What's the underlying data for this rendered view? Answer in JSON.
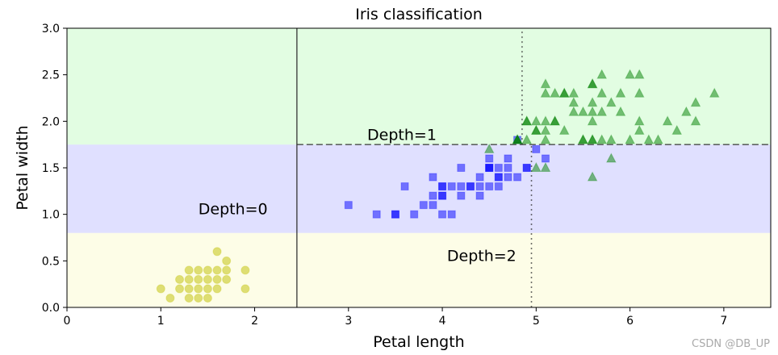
{
  "chart_data": {
    "type": "scatter",
    "title": "Iris classification",
    "xlabel": "Petal length",
    "ylabel": "Petal width",
    "xlim": [
      0,
      7.5
    ],
    "ylim": [
      0,
      3.0
    ],
    "xticks": [
      "0",
      "1",
      "2",
      "3",
      "4",
      "5",
      "6",
      "7"
    ],
    "yticks": [
      "0.0",
      "0.5",
      "1.0",
      "1.5",
      "2.0",
      "2.5",
      "3.0"
    ],
    "grid": false,
    "regions": [
      {
        "name": "setosa-region",
        "x": [
          0,
          7.5
        ],
        "y": [
          0,
          0.8
        ],
        "color": "#fafab0"
      },
      {
        "name": "versicolor-region",
        "x": [
          2.45,
          7.5
        ],
        "y": [
          0.8,
          1.75
        ],
        "color": "#9898ff"
      },
      {
        "name": "virginica-region",
        "x": [
          2.45,
          7.5
        ],
        "y": [
          1.75,
          3.0
        ],
        "color": "#a0faa0"
      },
      {
        "name": "versicolor-left-region",
        "x": [
          0,
          2.45
        ],
        "y": [
          0.8,
          1.75
        ],
        "color": "#9898ff"
      },
      {
        "name": "virginica-left-region",
        "x": [
          0,
          2.45
        ],
        "y": [
          1.75,
          3.0
        ],
        "color": "#a0faa0"
      }
    ],
    "boundaries": [
      {
        "name": "depth-0-boundary",
        "style": "solid",
        "x": [
          2.45,
          2.45
        ],
        "y": [
          0,
          3.0
        ]
      },
      {
        "name": "depth-1-boundary",
        "style": "dashed",
        "x": [
          2.45,
          7.5
        ],
        "y": [
          1.75,
          1.75
        ]
      },
      {
        "name": "depth-2-lower-boundary",
        "style": "dotted",
        "x": [
          4.95,
          4.95
        ],
        "y": [
          0,
          1.75
        ]
      },
      {
        "name": "depth-2-upper-boundary",
        "style": "dotted",
        "x": [
          4.85,
          4.85
        ],
        "y": [
          1.75,
          3.0
        ]
      }
    ],
    "annotations": [
      {
        "text": "Depth=0",
        "x": 1.4,
        "y": 1.0
      },
      {
        "text": "Depth=1",
        "x": 3.2,
        "y": 1.8
      },
      {
        "text": "Depth=2",
        "x": 4.05,
        "y": 0.5
      }
    ],
    "series": [
      {
        "marker": "circle",
        "color": "#bfbf00",
        "points": [
          [
            1.4,
            0.2
          ],
          [
            1.3,
            0.2
          ],
          [
            1.5,
            0.2
          ],
          [
            1.7,
            0.4
          ],
          [
            1.4,
            0.3
          ],
          [
            1.5,
            0.1
          ],
          [
            1.6,
            0.2
          ],
          [
            1.1,
            0.1
          ],
          [
            1.2,
            0.2
          ],
          [
            1.0,
            0.2
          ],
          [
            1.9,
            0.2
          ],
          [
            1.6,
            0.4
          ],
          [
            1.7,
            0.3
          ],
          [
            1.5,
            0.4
          ],
          [
            1.6,
            0.6
          ],
          [
            1.3,
            0.3
          ],
          [
            1.9,
            0.4
          ],
          [
            1.7,
            0.5
          ],
          [
            1.4,
            0.1
          ],
          [
            1.3,
            0.4
          ],
          [
            1.5,
            0.3
          ],
          [
            1.2,
            0.3
          ],
          [
            1.3,
            0.1
          ],
          [
            1.6,
            0.3
          ],
          [
            1.4,
            0.4
          ]
        ]
      },
      {
        "marker": "square",
        "color": "#0000ff",
        "points": [
          [
            4.7,
            1.4
          ],
          [
            4.5,
            1.5
          ],
          [
            4.9,
            1.5
          ],
          [
            4.0,
            1.3
          ],
          [
            4.6,
            1.5
          ],
          [
            4.5,
            1.3
          ],
          [
            4.7,
            1.6
          ],
          [
            3.3,
            1.0
          ],
          [
            4.6,
            1.3
          ],
          [
            3.9,
            1.4
          ],
          [
            3.5,
            1.0
          ],
          [
            4.2,
            1.5
          ],
          [
            4.0,
            1.0
          ],
          [
            3.6,
            1.3
          ],
          [
            4.4,
            1.4
          ],
          [
            4.1,
            1.0
          ],
          [
            4.5,
            1.5
          ],
          [
            3.9,
            1.1
          ],
          [
            4.8,
            1.8
          ],
          [
            4.3,
            1.3
          ],
          [
            4.8,
            1.4
          ],
          [
            5.0,
            1.7
          ],
          [
            3.8,
            1.1
          ],
          [
            3.7,
            1.0
          ],
          [
            3.9,
            1.2
          ],
          [
            5.1,
            1.6
          ],
          [
            4.5,
            1.6
          ],
          [
            4.7,
            1.5
          ],
          [
            4.4,
            1.3
          ],
          [
            4.1,
            1.3
          ],
          [
            4.0,
            1.3
          ],
          [
            4.4,
            1.2
          ],
          [
            4.6,
            1.4
          ],
          [
            4.0,
            1.2
          ],
          [
            3.0,
            1.1
          ],
          [
            4.2,
            1.3
          ],
          [
            4.2,
            1.2
          ],
          [
            4.3,
            1.3
          ],
          [
            3.5,
            1.0
          ],
          [
            4.9,
            1.5
          ],
          [
            4.6,
            1.4
          ],
          [
            4.5,
            1.5
          ],
          [
            4.0,
            1.2
          ]
        ]
      },
      {
        "marker": "triangle",
        "color": "#008000",
        "points": [
          [
            6.0,
            2.5
          ],
          [
            5.1,
            1.9
          ],
          [
            5.9,
            2.1
          ],
          [
            5.6,
            1.8
          ],
          [
            5.8,
            2.2
          ],
          [
            6.6,
            2.1
          ],
          [
            4.5,
            1.7
          ],
          [
            6.3,
            1.8
          ],
          [
            5.8,
            1.8
          ],
          [
            6.1,
            2.5
          ],
          [
            5.1,
            2.0
          ],
          [
            5.3,
            1.9
          ],
          [
            5.5,
            2.1
          ],
          [
            5.0,
            2.0
          ],
          [
            5.1,
            2.4
          ],
          [
            5.3,
            2.3
          ],
          [
            5.5,
            1.8
          ],
          [
            6.7,
            2.2
          ],
          [
            6.9,
            2.3
          ],
          [
            5.0,
            1.5
          ],
          [
            5.7,
            2.3
          ],
          [
            4.9,
            2.0
          ],
          [
            6.7,
            2.0
          ],
          [
            4.9,
            1.8
          ],
          [
            5.7,
            2.1
          ],
          [
            6.0,
            1.8
          ],
          [
            4.8,
            1.8
          ],
          [
            5.6,
            2.1
          ],
          [
            5.8,
            1.6
          ],
          [
            6.1,
            1.9
          ],
          [
            6.4,
            2.0
          ],
          [
            5.6,
            2.2
          ],
          [
            5.1,
            1.5
          ],
          [
            5.6,
            1.4
          ],
          [
            6.1,
            2.3
          ],
          [
            5.6,
            2.4
          ],
          [
            5.5,
            1.8
          ],
          [
            4.8,
            1.8
          ],
          [
            5.4,
            2.1
          ],
          [
            5.6,
            2.4
          ],
          [
            5.1,
            2.3
          ],
          [
            5.9,
            2.3
          ],
          [
            5.7,
            2.5
          ],
          [
            5.2,
            2.3
          ],
          [
            5.0,
            1.9
          ],
          [
            5.2,
            2.0
          ],
          [
            5.4,
            2.3
          ],
          [
            5.1,
            1.8
          ],
          [
            6.1,
            2.0
          ],
          [
            5.2,
            2.0
          ],
          [
            6.5,
            1.9
          ],
          [
            4.9,
            2.0
          ],
          [
            5.0,
            1.9
          ],
          [
            5.6,
            2.0
          ],
          [
            5.3,
            2.3
          ],
          [
            5.6,
            1.8
          ],
          [
            5.4,
            2.2
          ],
          [
            5.7,
            1.8
          ],
          [
            6.2,
            1.8
          ],
          [
            4.8,
            1.8
          ]
        ]
      }
    ]
  },
  "watermark": "CSDN @DB_UP"
}
